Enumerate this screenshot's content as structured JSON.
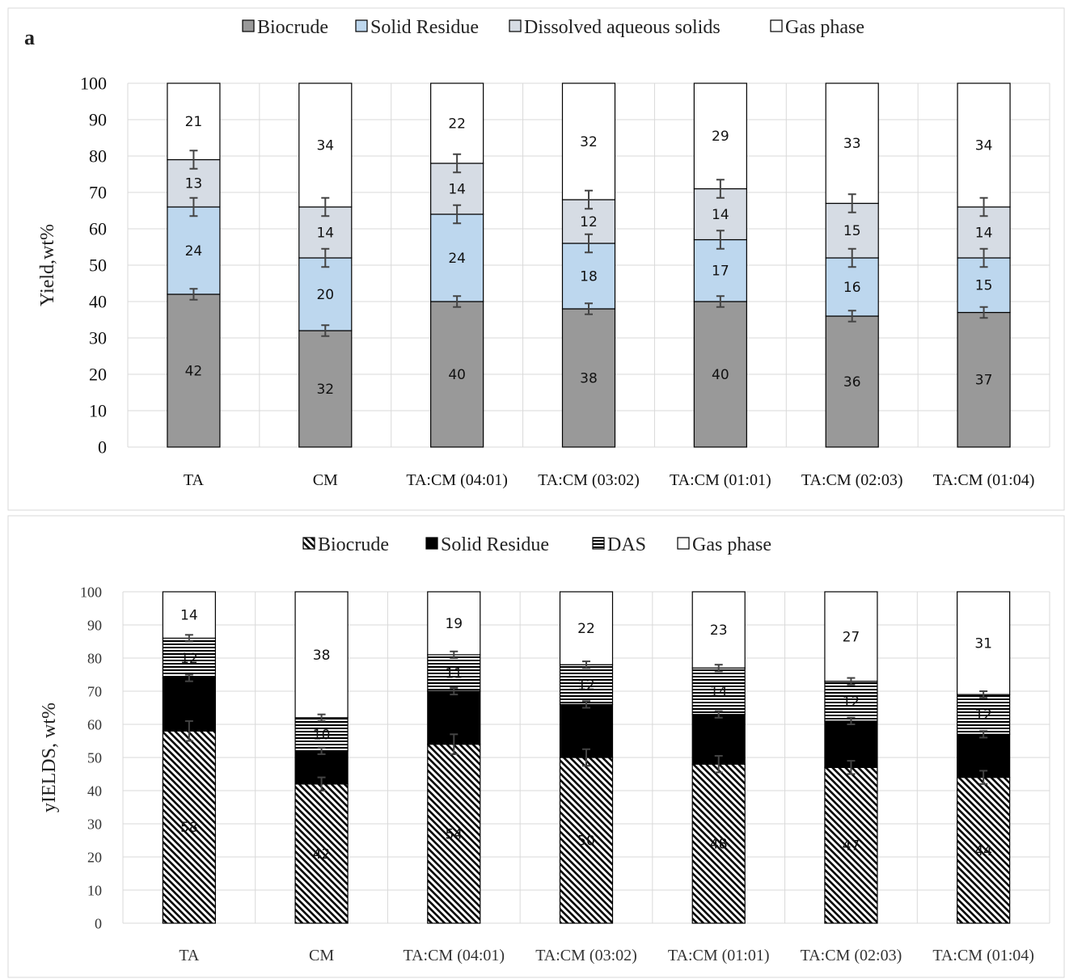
{
  "chart_data": [
    {
      "type": "bar",
      "stacked": true,
      "panel_label": "a",
      "title": "",
      "xlabel": "",
      "ylabel": "Yield,wt%",
      "ylim": [
        0,
        100
      ],
      "yticks": [
        0,
        10,
        20,
        30,
        40,
        50,
        60,
        70,
        80,
        90,
        100
      ],
      "grid": true,
      "legend_position": "top",
      "categories": [
        "TA",
        "CM",
        "TA:CM (04:01)",
        "TA:CM (03:02)",
        "TA:CM (01:01)",
        "TA:CM (02:03)",
        "TA:CM (01:04)"
      ],
      "series": [
        {
          "name": "Biocrude",
          "values": [
            42,
            32,
            40,
            38,
            40,
            36,
            37
          ],
          "errors": [
            1.5,
            1.5,
            1.5,
            1.5,
            1.5,
            1.5,
            1.5
          ],
          "color": "#999999"
        },
        {
          "name": "Solid Residue",
          "values": [
            24,
            20,
            24,
            18,
            17,
            16,
            15
          ],
          "errors": [
            2.5,
            2.5,
            2.5,
            2.5,
            2.5,
            2.5,
            2.5
          ],
          "color": "#bdd7ee"
        },
        {
          "name": "Dissolved aqueous solids",
          "values": [
            13,
            14,
            14,
            12,
            14,
            15,
            14
          ],
          "errors": [
            2.5,
            2.5,
            2.5,
            2.5,
            2.5,
            2.5,
            2.5
          ],
          "color": "#d6dce4"
        },
        {
          "name": "Gas phase",
          "values": [
            21,
            34,
            22,
            32,
            29,
            33,
            34
          ],
          "color": "#ffffff"
        }
      ]
    },
    {
      "type": "bar",
      "stacked": true,
      "title": "",
      "xlabel": "",
      "ylabel": "yIELDS, wt%",
      "ylim": [
        0,
        100
      ],
      "yticks": [
        0,
        10,
        20,
        30,
        40,
        50,
        60,
        70,
        80,
        90,
        100
      ],
      "grid": true,
      "legend_position": "top",
      "categories": [
        "TA",
        "CM",
        "TA:CM (04:01)",
        "TA:CM (03:02)",
        "TA:CM (01:01)",
        "TA:CM (02:03)",
        "TA:CM (01:04)"
      ],
      "series": [
        {
          "name": "Biocrude",
          "values": [
            58,
            42,
            54,
            50,
            48,
            47,
            44
          ],
          "errors": [
            3,
            2,
            3,
            2.5,
            2.5,
            2,
            2
          ],
          "pattern": "diagonal"
        },
        {
          "name": "Solid Residue",
          "values": [
            16,
            10,
            16,
            16,
            15,
            14,
            13
          ],
          "errors": [
            1,
            1,
            1,
            1,
            1,
            1,
            1
          ],
          "color": "#000000"
        },
        {
          "name": "DAS",
          "values": [
            12,
            10,
            11,
            12,
            14,
            12,
            12
          ],
          "errors": [
            1,
            1,
            1,
            1,
            1,
            1,
            1
          ],
          "pattern": "horizontal"
        },
        {
          "name": "Gas phase",
          "values": [
            14,
            38,
            19,
            22,
            23,
            27,
            31
          ],
          "color": "#ffffff"
        }
      ],
      "data_labels": [
        [
          "58",
          "",
          "12",
          "14"
        ],
        [
          "42",
          "",
          "10",
          "38"
        ],
        [
          "54",
          "",
          "11",
          "19"
        ],
        [
          "50",
          "",
          "12",
          "22"
        ],
        [
          "48",
          "",
          "14",
          "23"
        ],
        [
          "47",
          "",
          "12",
          "27"
        ],
        [
          "44",
          "",
          "12",
          "31"
        ]
      ]
    }
  ]
}
